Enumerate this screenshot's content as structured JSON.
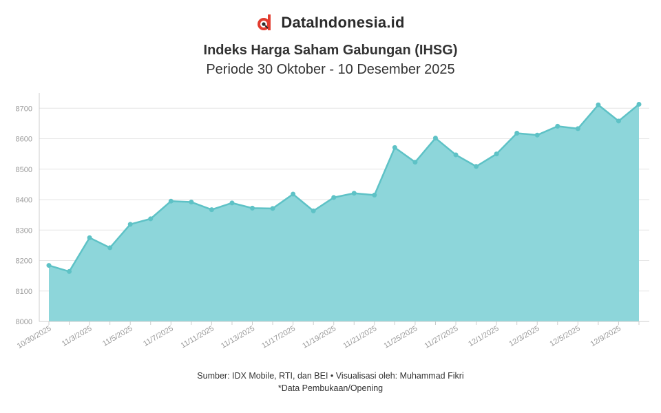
{
  "brand": {
    "name": "DataIndonesia.id",
    "logo_icon": "dataindonesia-logo-icon"
  },
  "colors": {
    "line": "#5ec2c6",
    "area": "#8dd6da",
    "grid": "#e6e6e6",
    "axis": "#cccccc",
    "tick": "#9a9a9a",
    "logo_red": "#e23c2f"
  },
  "footer": {
    "source": "Sumber: IDX Mobile, RTI, dan BEI • Visualisasi oleh: Muhammad Fikri",
    "note": "*Data Pembukaan/Opening"
  },
  "chart_data": {
    "type": "area",
    "title": "Indeks Harga Saham Gabungan (IHSG)",
    "subtitle": "Periode 30 Oktober - 10 Desember 2025",
    "xlabel": "",
    "ylabel": "",
    "ylim": [
      8000,
      8750
    ],
    "yticks": [
      8000,
      8100,
      8200,
      8300,
      8400,
      8500,
      8600,
      8700
    ],
    "grid": true,
    "legend": "none",
    "x": [
      "10/30/2025",
      "10/31/2025",
      "11/3/2025",
      "11/4/2025",
      "11/5/2025",
      "11/6/2025",
      "11/7/2025",
      "11/10/2025",
      "11/11/2025",
      "11/12/2025",
      "11/13/2025",
      "11/14/2025",
      "11/17/2025",
      "11/18/2025",
      "11/19/2025",
      "11/20/2025",
      "11/21/2025",
      "11/24/2025",
      "11/25/2025",
      "11/26/2025",
      "11/27/2025",
      "11/28/2025",
      "12/1/2025",
      "12/2/2025",
      "12/3/2025",
      "12/4/2025",
      "12/5/2025",
      "12/8/2025",
      "12/9/2025",
      "12/10/2025"
    ],
    "xtick_labels": [
      "10/30/2025",
      "11/3/2025",
      "11/5/2025",
      "11/7/2025",
      "11/11/2025",
      "11/13/2025",
      "11/17/2025",
      "11/19/2025",
      "11/21/2025",
      "11/25/2025",
      "11/27/2025",
      "12/1/2025",
      "12/3/2025",
      "12/5/2025",
      "12/9/2025"
    ],
    "series": [
      {
        "values": [
          8184,
          8164,
          8275,
          8242,
          8319,
          8337,
          8395,
          8392,
          8367,
          8389,
          8372,
          8371,
          8418,
          8363,
          8407,
          8421,
          8415,
          8571,
          8523,
          8602,
          8547,
          8509,
          8550,
          8618,
          8612,
          8641,
          8633,
          8711,
          8658,
          8713
        ]
      }
    ]
  }
}
